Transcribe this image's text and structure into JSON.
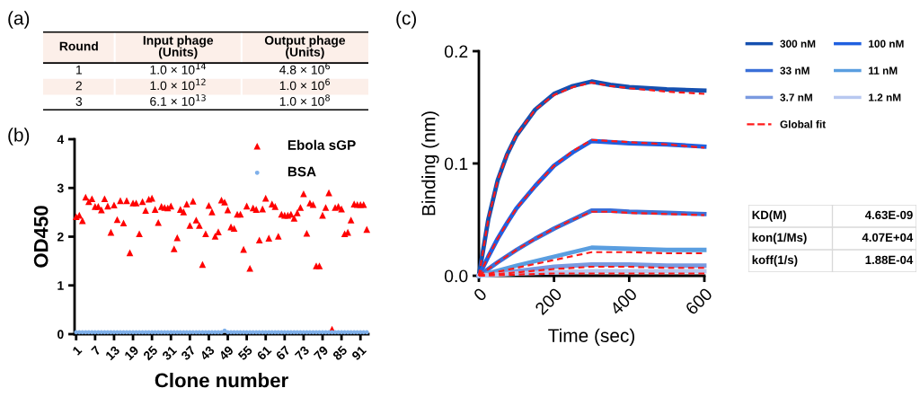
{
  "chart_data": [
    {
      "type": "other",
      "title": "(a)",
      "categories": [
        "Round",
        "Input phage\n(Units)",
        "Output phage\n(Units)"
      ],
      "cell_labels": [
        [
          "1",
          "1.0 × 10$^{14}$",
          "4.8 × 10$^{6}$"
        ],
        [
          "2",
          "1.0 × 10$^{12}$",
          "1.0 × 10$^{6}$"
        ],
        [
          "3",
          "6.1 × 10$^{13}$",
          "1.0 × 10$^{8}$"
        ]
      ]
    },
    {
      "type": "scatter",
      "title": "(b)",
      "xlabel": "Clone number",
      "ylabel": "OD450",
      "legend": "top right",
      "grid": false,
      "x": [
        1,
        2,
        3,
        4,
        5,
        6,
        7,
        8,
        9,
        10,
        11,
        12,
        13,
        14,
        15,
        16,
        17,
        18,
        19,
        20,
        21,
        22,
        23,
        24,
        25,
        26,
        27,
        28,
        29,
        30,
        31,
        32,
        33,
        34,
        35,
        36,
        37,
        38,
        39,
        40,
        41,
        42,
        43,
        44,
        45,
        46,
        47,
        48,
        49,
        50,
        51,
        52,
        53,
        54,
        55,
        56,
        57,
        58,
        59,
        60,
        61,
        62,
        63,
        64,
        65,
        66,
        67,
        68,
        69,
        70,
        71,
        72,
        73,
        74,
        75,
        76,
        77,
        78,
        79,
        80,
        81,
        82,
        83,
        84,
        85,
        86,
        87,
        88,
        89,
        90,
        91,
        92,
        93
      ],
      "xlim": [
        0.5,
        93.5
      ],
      "xticks": [
        1,
        7,
        13,
        19,
        25,
        31,
        37,
        43,
        49,
        55,
        61,
        67,
        73,
        79,
        85,
        91
      ],
      "ylim": [
        0,
        4
      ],
      "yticks": [
        0,
        1,
        2,
        3,
        4
      ],
      "series": [
        {
          "name": "Ebola sGP",
          "color": "#ff0000",
          "marker": "triangle",
          "values": [
            2.41,
            2.44,
            2.33,
            2.81,
            2.72,
            2.78,
            2.62,
            2.62,
            2.55,
            2.78,
            2.63,
            2.09,
            2.65,
            2.35,
            2.74,
            2.28,
            2.74,
            1.67,
            2.69,
            2.69,
            2.06,
            2.72,
            2.54,
            2.77,
            2.79,
            2.56,
            2.29,
            2.62,
            2.6,
            2.59,
            2.63,
            1.75,
            1.98,
            2.56,
            2.51,
            2.67,
            2.23,
            2.73,
            2.34,
            2.23,
            1.43,
            2.06,
            2.64,
            2.51,
            2.01,
            2.1,
            2.75,
            2.71,
            2.55,
            2.2,
            2.17,
            2.46,
            2.46,
            1.74,
            2.63,
            1.35,
            2.59,
            2.56,
            1.93,
            2.57,
            2.79,
            1.97,
            2.67,
            2.62,
            2.01,
            2.46,
            2.44,
            2.44,
            2.46,
            2.38,
            2.49,
            2.6,
            2.88,
            2.07,
            2.69,
            2.66,
            1.4,
            1.4,
            2.44,
            2.6,
            2.9,
            0.1,
            2.6,
            2.62,
            2.57,
            2.06,
            2.09,
            2.34,
            2.67,
            2.66,
            2.66,
            2.66,
            2.15
          ]
        },
        {
          "name": "BSA",
          "color": "#7fb0ea",
          "marker": "circle",
          "values": [
            0.04,
            0.04,
            0.04,
            0.04,
            0.04,
            0.04,
            0.04,
            0.04,
            0.04,
            0.04,
            0.04,
            0.04,
            0.04,
            0.04,
            0.04,
            0.04,
            0.04,
            0.04,
            0.04,
            0.04,
            0.04,
            0.04,
            0.04,
            0.04,
            0.04,
            0.04,
            0.04,
            0.04,
            0.04,
            0.04,
            0.04,
            0.04,
            0.04,
            0.04,
            0.04,
            0.04,
            0.04,
            0.04,
            0.04,
            0.04,
            0.04,
            0.04,
            0.04,
            0.04,
            0.04,
            0.04,
            0.04,
            0.07,
            0.04,
            0.04,
            0.04,
            0.04,
            0.04,
            0.04,
            0.04,
            0.04,
            0.04,
            0.04,
            0.04,
            0.04,
            0.04,
            0.04,
            0.04,
            0.04,
            0.04,
            0.04,
            0.04,
            0.04,
            0.04,
            0.04,
            0.04,
            0.04,
            0.04,
            0.04,
            0.04,
            0.04,
            0.04,
            0.04,
            0.04,
            0.04,
            0.04,
            0.04,
            0.04,
            0.04,
            0.04,
            0.04,
            0.04,
            0.04,
            0.04,
            0.04,
            0.04,
            0.04,
            0.04
          ]
        }
      ]
    },
    {
      "type": "line",
      "title": "(c)",
      "xlabel": "Time (sec)",
      "ylabel": "Binding (nm)",
      "legend": "right",
      "grid": false,
      "xlim": [
        0,
        600
      ],
      "xticks": [
        0,
        200,
        400,
        600
      ],
      "ylim": [
        0,
        0.2
      ],
      "yticks": [
        {
          "value": 0,
          "label": "0.0"
        },
        {
          "value": 0.1,
          "label": "0.1"
        },
        {
          "value": 0.2,
          "label": "0.2"
        }
      ],
      "series": [
        {
          "name": "300 nM",
          "color": "#1550b0",
          "x": [
            0,
            25,
            50,
            75,
            100,
            150,
            200,
            250,
            300,
            350,
            400,
            500,
            600
          ],
          "values": [
            0,
            0.05,
            0.085,
            0.108,
            0.125,
            0.148,
            0.162,
            0.169,
            0.173,
            0.17,
            0.168,
            0.166,
            0.165
          ]
        },
        {
          "name": "100 nM",
          "color": "#2060e0",
          "x": [
            0,
            25,
            50,
            75,
            100,
            150,
            200,
            250,
            300,
            350,
            400,
            500,
            600
          ],
          "values": [
            0,
            0.017,
            0.033,
            0.047,
            0.06,
            0.08,
            0.098,
            0.11,
            0.12,
            0.119,
            0.118,
            0.117,
            0.115
          ]
        },
        {
          "name": "33 nM",
          "color": "#3a6fd8",
          "x": [
            0,
            50,
            100,
            150,
            200,
            250,
            300,
            350,
            400,
            500,
            600
          ],
          "values": [
            0,
            0.012,
            0.023,
            0.033,
            0.042,
            0.05,
            0.058,
            0.058,
            0.057,
            0.056,
            0.055
          ]
        },
        {
          "name": "11 nM",
          "color": "#5a9ee0",
          "x": [
            0,
            100,
            200,
            300,
            400,
            500,
            600
          ],
          "values": [
            0,
            0.009,
            0.017,
            0.025,
            0.024,
            0.023,
            0.023
          ]
        },
        {
          "name": "3.7 nM",
          "color": "#7a9ae0",
          "x": [
            0,
            100,
            200,
            300,
            400,
            500,
            600
          ],
          "values": [
            0,
            0.004,
            0.008,
            0.01,
            0.01,
            0.009,
            0.009
          ]
        },
        {
          "name": "1.2 nM",
          "color": "#b8c8f0",
          "x": [
            0,
            100,
            200,
            300,
            400,
            500,
            600
          ],
          "values": [
            0,
            0.002,
            0.003,
            0.004,
            0.004,
            0.004,
            0.004
          ]
        },
        {
          "name": "Global fit",
          "color": "#ff1a1a",
          "line_style": "dashed",
          "x": [
            0,
            25,
            50,
            75,
            100,
            150,
            200,
            250,
            300,
            350,
            400,
            500,
            600
          ],
          "values": [
            0,
            0.05,
            0.085,
            0.108,
            0.125,
            0.148,
            0.161,
            0.168,
            0.172,
            0.169,
            0.167,
            0.164,
            0.162
          ]
        },
        {
          "color": "#ff1a1a",
          "line_style": "dashed",
          "x": [
            0,
            25,
            50,
            75,
            100,
            150,
            200,
            250,
            300,
            350,
            400,
            500,
            600
          ],
          "values": [
            0,
            0.017,
            0.033,
            0.047,
            0.06,
            0.08,
            0.098,
            0.111,
            0.121,
            0.12,
            0.119,
            0.117,
            0.114
          ]
        },
        {
          "color": "#ff1a1a",
          "line_style": "dashed",
          "x": [
            0,
            50,
            100,
            150,
            200,
            250,
            300,
            350,
            400,
            500,
            600
          ],
          "values": [
            0,
            0.012,
            0.023,
            0.033,
            0.042,
            0.05,
            0.057,
            0.057,
            0.056,
            0.055,
            0.054
          ]
        },
        {
          "color": "#ff1a1a",
          "line_style": "dashed",
          "x": [
            0,
            100,
            200,
            300,
            400,
            500,
            600
          ],
          "values": [
            0,
            0.007,
            0.014,
            0.021,
            0.021,
            0.02,
            0.02
          ]
        },
        {
          "color": "#ff1a1a",
          "line_style": "dashed",
          "x": [
            0,
            100,
            200,
            300,
            400,
            500,
            600
          ],
          "values": [
            0,
            0.003,
            0.006,
            0.008,
            0.008,
            0.007,
            0.007
          ]
        },
        {
          "color": "#ff1a1a",
          "line_style": "dashed",
          "x": [
            0,
            100,
            200,
            300,
            400,
            500,
            600
          ],
          "values": [
            0,
            0.001,
            0.002,
            0.002,
            0.002,
            0.002,
            0.002
          ]
        }
      ]
    },
    {
      "type": "other",
      "cell_labels": [
        [
          "KD(M)",
          "4.63E-09"
        ],
        [
          "kon(1/Ms)",
          "4.07E+04"
        ],
        [
          "koff(1/s)",
          "1.88E-04"
        ]
      ]
    }
  ]
}
